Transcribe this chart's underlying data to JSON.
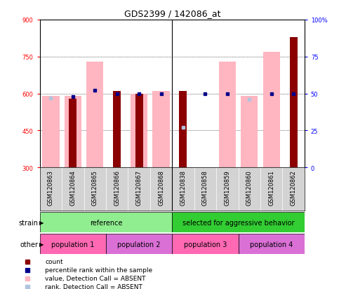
{
  "title": "GDS2399 / 142086_at",
  "samples": [
    "GSM120863",
    "GSM120864",
    "GSM120865",
    "GSM120866",
    "GSM120867",
    "GSM120868",
    "GSM120838",
    "GSM120858",
    "GSM120859",
    "GSM120860",
    "GSM120861",
    "GSM120862"
  ],
  "count_values": [
    300,
    580,
    300,
    610,
    600,
    300,
    610,
    300,
    300,
    300,
    300,
    830
  ],
  "count_present": [
    false,
    true,
    false,
    true,
    true,
    false,
    true,
    false,
    false,
    false,
    false,
    true
  ],
  "value_absent": [
    590,
    590,
    730,
    300,
    600,
    610,
    300,
    300,
    730,
    590,
    770,
    300
  ],
  "value_absent_present": [
    true,
    true,
    true,
    false,
    true,
    true,
    false,
    false,
    true,
    true,
    true,
    false
  ],
  "rank_present_values": [
    48,
    48,
    52,
    50,
    50,
    50,
    0,
    50,
    50,
    47,
    50,
    50
  ],
  "rank_present_present": [
    false,
    true,
    true,
    true,
    true,
    true,
    false,
    true,
    true,
    false,
    true,
    true
  ],
  "rank_absent_values": [
    47,
    0,
    0,
    0,
    0,
    0,
    27,
    0,
    0,
    46,
    0,
    0
  ],
  "rank_absent_present": [
    true,
    false,
    false,
    false,
    false,
    false,
    true,
    false,
    false,
    true,
    false,
    false
  ],
  "ylim_left": [
    300,
    900
  ],
  "ylim_right": [
    0,
    100
  ],
  "yticks_left": [
    300,
    450,
    600,
    750,
    900
  ],
  "yticks_right": [
    0,
    25,
    50,
    75,
    100
  ],
  "color_count": "#8B0000",
  "color_rank_present": "#00008B",
  "color_value_absent": "#FFB6C1",
  "color_rank_absent": "#B0C4DE",
  "strain_groups": [
    {
      "label": "reference",
      "start": 0,
      "end": 6,
      "color": "#90EE90"
    },
    {
      "label": "selected for aggressive behavior",
      "start": 6,
      "end": 12,
      "color": "#32CD32"
    }
  ],
  "population_groups": [
    {
      "label": "population 1",
      "start": 0,
      "end": 3,
      "color": "#FF69B4"
    },
    {
      "label": "population 2",
      "start": 3,
      "end": 6,
      "color": "#DA70D6"
    },
    {
      "label": "population 3",
      "start": 6,
      "end": 9,
      "color": "#FF69B4"
    },
    {
      "label": "population 4",
      "start": 9,
      "end": 12,
      "color": "#DA70D6"
    }
  ],
  "bar_width": 0.35,
  "tick_label_fontsize": 6.0,
  "axis_label_fontsize": 7
}
